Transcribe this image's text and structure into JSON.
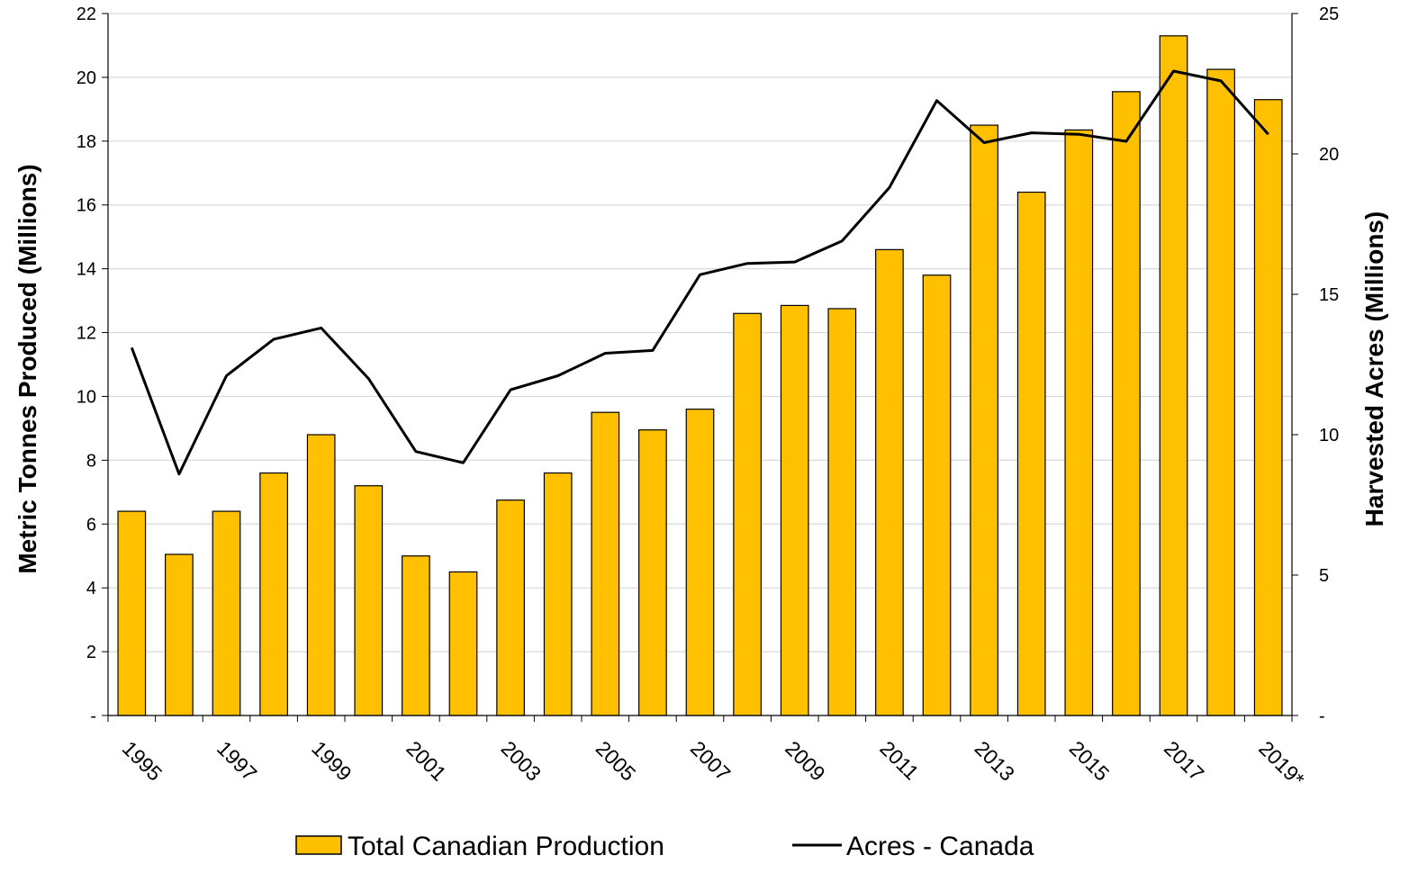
{
  "chart_data": {
    "type": "bar",
    "categories": [
      "1995",
      "1996",
      "1997",
      "1998",
      "1999",
      "2000",
      "2001",
      "2002",
      "2003",
      "2004",
      "2005",
      "2006",
      "2007",
      "2008",
      "2009",
      "2010",
      "2011",
      "2012",
      "2013",
      "2014",
      "2015",
      "2016",
      "2017",
      "2018",
      "2019*"
    ],
    "x_tick_labels": [
      "1995",
      "1997",
      "1999",
      "2001",
      "2003",
      "2005",
      "2007",
      "2009",
      "2011",
      "2013",
      "2015",
      "2017",
      "2019*"
    ],
    "ylabel": "Metric Tonnes Produced (Millions)",
    "y2label": "Harvested Acres (Millions)",
    "ylim": [
      0,
      22
    ],
    "y2lim": [
      0,
      25
    ],
    "y_ticks": [
      "-",
      "2",
      "4",
      "6",
      "8",
      "10",
      "12",
      "14",
      "16",
      "18",
      "20",
      "22"
    ],
    "y2_ticks": [
      "-",
      "5",
      "10",
      "15",
      "20",
      "25"
    ],
    "grid": true,
    "legend_position": "bottom",
    "series": [
      {
        "name": "Total Canadian Production",
        "type": "bar",
        "axis": "left",
        "color": "#FFC000",
        "values": [
          6.4,
          5.05,
          6.4,
          7.6,
          8.8,
          7.2,
          5.0,
          4.5,
          6.75,
          7.6,
          9.5,
          8.95,
          9.6,
          12.6,
          12.85,
          12.75,
          14.6,
          13.8,
          18.5,
          16.4,
          18.35,
          19.55,
          21.3,
          20.25,
          19.3
        ]
      },
      {
        "name": "Acres - Canada",
        "type": "line",
        "axis": "right",
        "color": "#000000",
        "values": [
          13.1,
          8.6,
          12.1,
          13.4,
          13.8,
          12.0,
          9.4,
          9.0,
          11.6,
          12.1,
          12.9,
          13.0,
          15.7,
          16.1,
          16.15,
          16.9,
          18.8,
          21.9,
          20.4,
          20.75,
          20.7,
          20.45,
          22.95,
          22.6,
          20.7
        ]
      }
    ]
  }
}
